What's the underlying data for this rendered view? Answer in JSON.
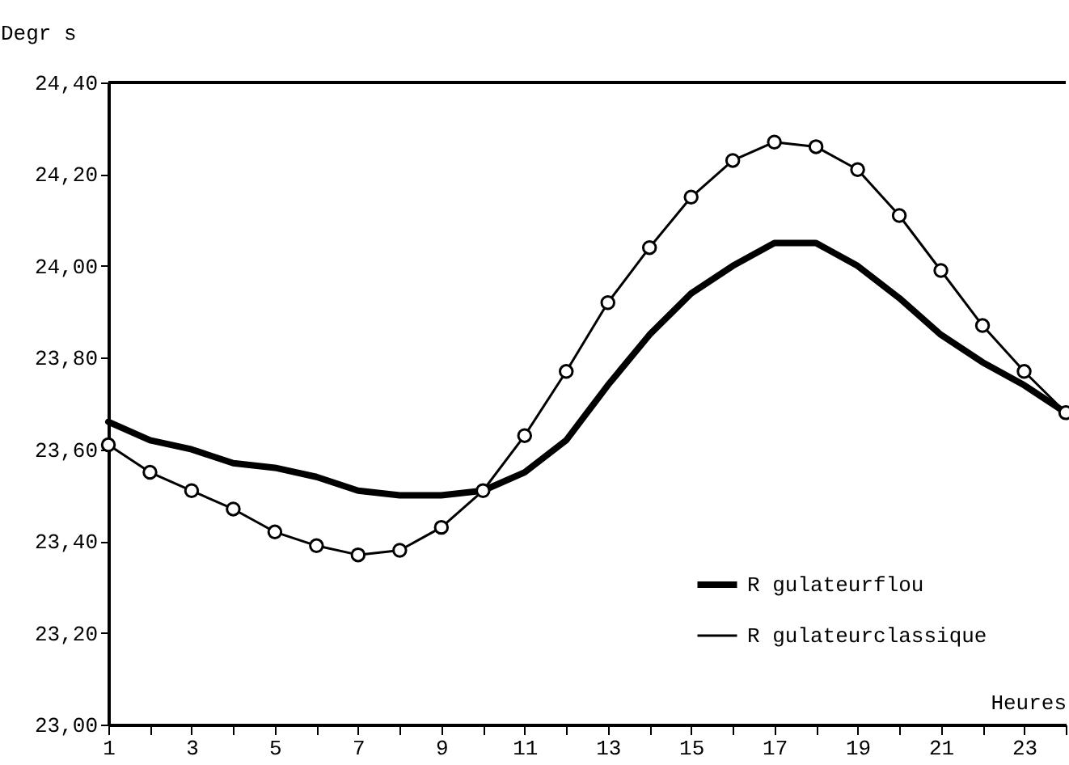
{
  "chart_data": {
    "type": "line",
    "xlabel": "Heures",
    "ylabel": "Degr s",
    "x": [
      1,
      2,
      3,
      4,
      5,
      6,
      7,
      8,
      9,
      10,
      11,
      12,
      13,
      14,
      15,
      16,
      17,
      18,
      19,
      20,
      21,
      22,
      23,
      24
    ],
    "series": [
      {
        "name": "R gulateurflou",
        "color": "#000000",
        "marker": "none",
        "values": [
          23.66,
          23.62,
          23.6,
          23.57,
          23.56,
          23.54,
          23.51,
          23.5,
          23.5,
          23.51,
          23.55,
          23.62,
          23.74,
          23.85,
          23.94,
          24.0,
          24.05,
          24.05,
          24.0,
          23.93,
          23.85,
          23.79,
          23.74,
          23.68
        ]
      },
      {
        "name": "R gulateurclassique",
        "color": "#000000",
        "marker": "circle",
        "values": [
          23.61,
          23.55,
          23.51,
          23.47,
          23.42,
          23.39,
          23.37,
          23.38,
          23.43,
          23.51,
          23.63,
          23.77,
          23.92,
          24.04,
          24.15,
          24.23,
          24.27,
          24.26,
          24.21,
          24.11,
          23.99,
          23.87,
          23.77,
          23.68
        ]
      }
    ],
    "xlim": [
      1,
      24
    ],
    "xticks": [
      1,
      {
        "value": 2,
        "label": null
      },
      3,
      {
        "value": 4,
        "label": null
      },
      5,
      {
        "value": 6,
        "label": null
      },
      7,
      {
        "value": 8,
        "label": null
      },
      9,
      {
        "value": 10,
        "label": null
      },
      11,
      {
        "value": 12,
        "label": null
      },
      13,
      {
        "value": 14,
        "label": null
      },
      15,
      {
        "value": 16,
        "label": null
      },
      17,
      {
        "value": 18,
        "label": null
      },
      19,
      {
        "value": 20,
        "label": null
      },
      21,
      {
        "value": 22,
        "label": null
      },
      23,
      {
        "value": 24,
        "label": null
      }
    ],
    "ylim": [
      23.0,
      24.4
    ],
    "yticks": [
      {
        "value": 23.0,
        "label": "23,00"
      },
      {
        "value": 23.2,
        "label": "23,20"
      },
      {
        "value": 23.4,
        "label": "23,40"
      },
      {
        "value": 23.6,
        "label": "23,60"
      },
      {
        "value": 23.8,
        "label": "23,80"
      },
      {
        "value": 24.0,
        "label": "24,00"
      },
      {
        "value": 24.2,
        "label": "24,20"
      },
      {
        "value": 24.4,
        "label": "24,40"
      }
    ],
    "grid": false,
    "legend": "bottom right"
  }
}
